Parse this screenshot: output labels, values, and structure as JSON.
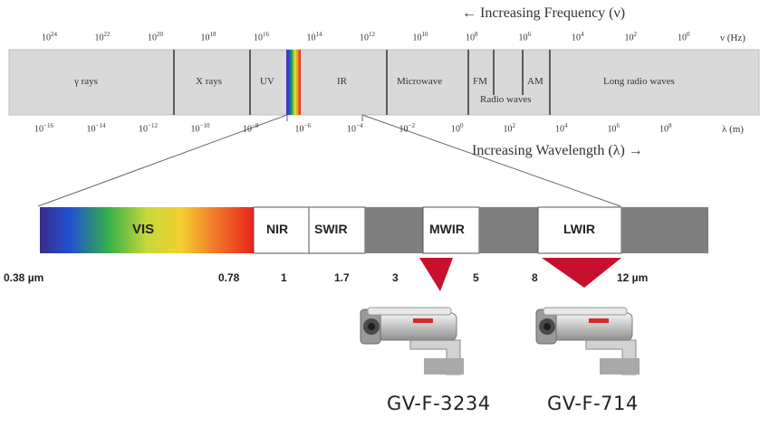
{
  "spectrum": {
    "frequency_caption": "← Increasing Frequency (ν)",
    "frequency_unit": "ν (Hz)",
    "frequency_ticks": [
      {
        "base": "10",
        "exp": "24"
      },
      {
        "base": "10",
        "exp": "22"
      },
      {
        "base": "10",
        "exp": "20"
      },
      {
        "base": "10",
        "exp": "18"
      },
      {
        "base": "10",
        "exp": "16"
      },
      {
        "base": "10",
        "exp": "14"
      },
      {
        "base": "10",
        "exp": "12"
      },
      {
        "base": "10",
        "exp": "10"
      },
      {
        "base": "10",
        "exp": "8"
      },
      {
        "base": "10",
        "exp": "6"
      },
      {
        "base": "10",
        "exp": "4"
      },
      {
        "base": "10",
        "exp": "2"
      },
      {
        "base": "10",
        "exp": "0"
      }
    ],
    "wavelength_caption": "Increasing Wavelength (λ) →",
    "wavelength_unit": "λ (m)",
    "wavelength_ticks": [
      {
        "base": "10",
        "exp": "−16"
      },
      {
        "base": "10",
        "exp": "−14"
      },
      {
        "base": "10",
        "exp": "−12"
      },
      {
        "base": "10",
        "exp": "−10"
      },
      {
        "base": "10",
        "exp": "−8"
      },
      {
        "base": "10",
        "exp": "−6"
      },
      {
        "base": "10",
        "exp": "−4"
      },
      {
        "base": "10",
        "exp": "−2"
      },
      {
        "base": "10",
        "exp": "0"
      },
      {
        "base": "10",
        "exp": "2"
      },
      {
        "base": "10",
        "exp": "4"
      },
      {
        "base": "10",
        "exp": "6"
      },
      {
        "base": "10",
        "exp": "8"
      }
    ],
    "regions": {
      "gamma": "γ rays",
      "xray": "X rays",
      "uv": "UV",
      "ir": "IR",
      "microwave": "Microwave",
      "fm": "FM",
      "am": "AM",
      "radio": "Radio waves",
      "long_radio": "Long radio waves"
    }
  },
  "bands": {
    "vis": "VIS",
    "nir": "NIR",
    "swir": "SWIR",
    "mwir": "MWIR",
    "lwir": "LWIR",
    "scale": [
      "0.38 µm",
      "0.78",
      "1",
      "1.7",
      "3",
      "5",
      "8",
      "12 µm"
    ]
  },
  "cameras": {
    "mwir_model": "GV-F-3234",
    "lwir_model": "GV-F-714"
  },
  "colors": {
    "spectrum_bar": "#d9d9d9",
    "band_gray": "#7f7f7f",
    "marker_red": "#c8102e"
  }
}
